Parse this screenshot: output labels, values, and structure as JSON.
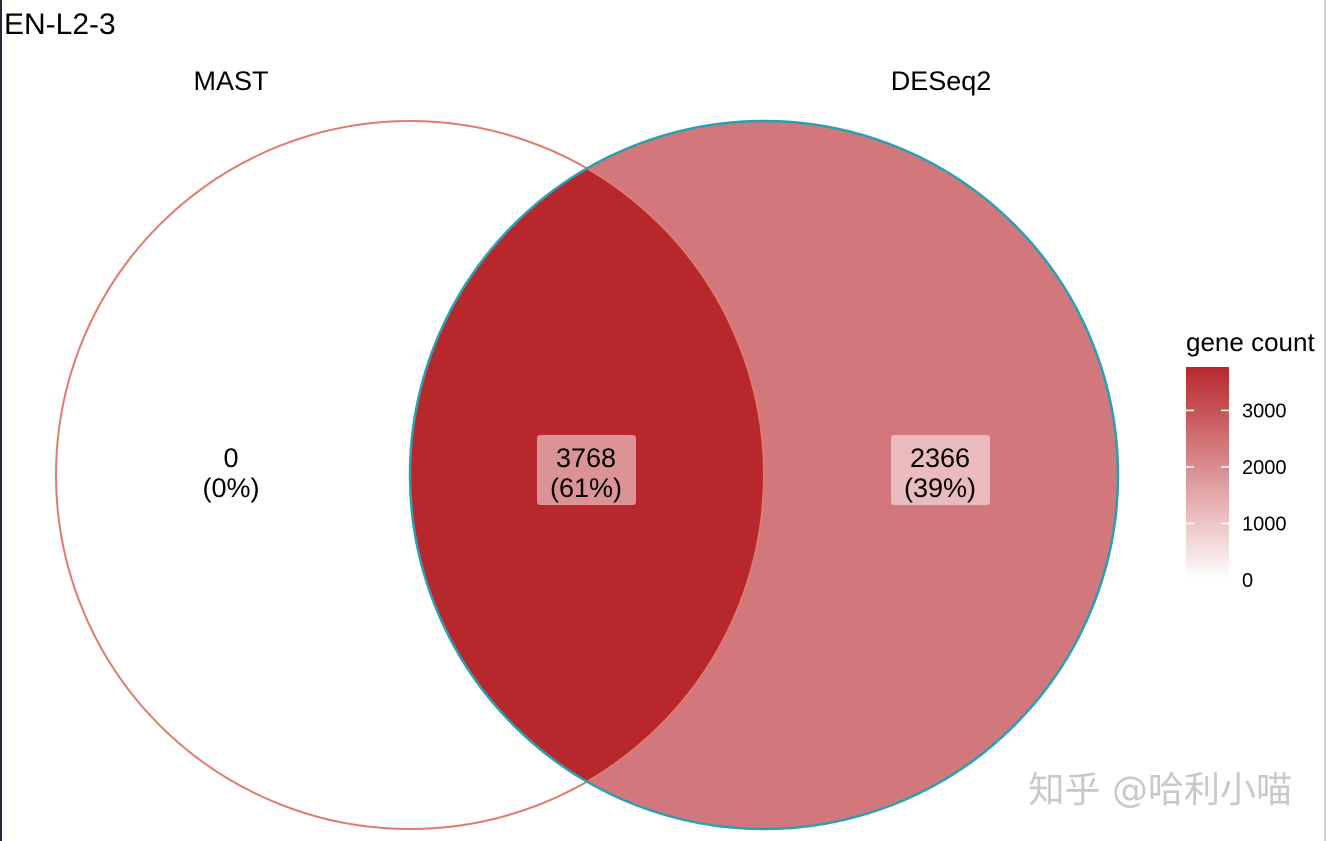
{
  "chart_data": {
    "type": "venn",
    "title": "EN-L2-3",
    "sets": [
      "MAST",
      "DESeq2"
    ],
    "regions": [
      {
        "sets": [
          "MAST"
        ],
        "count": 0,
        "label_count": "0",
        "label_pct": "(0%)"
      },
      {
        "sets": [
          "MAST",
          "DESeq2"
        ],
        "count": 3768,
        "label_count": "3768",
        "label_pct": "(61%)"
      },
      {
        "sets": [
          "DESeq2"
        ],
        "count": 2366,
        "label_count": "2366",
        "label_pct": "(39%)"
      }
    ],
    "legend": {
      "title": "gene count",
      "placement": "right",
      "range": [
        0,
        3768
      ],
      "ticks": [
        "3000",
        "2000",
        "1000",
        "0"
      ],
      "tick_values": [
        3000,
        2000,
        1000,
        0
      ],
      "color_low": "#ffffff",
      "color_high": "#b8272c"
    },
    "outline_colors": {
      "MAST": "#e07b6e",
      "DESeq2": "#2a9fb0"
    }
  },
  "watermark": "知乎 @哈利小喵"
}
